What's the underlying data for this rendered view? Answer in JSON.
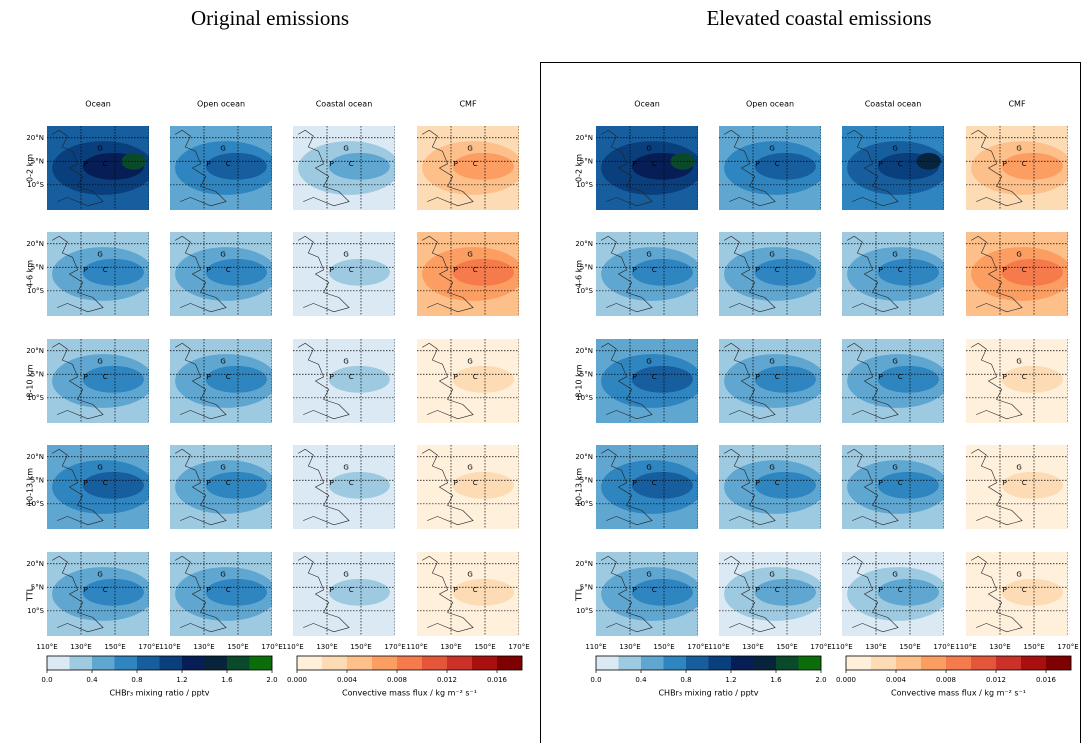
{
  "panels": [
    {
      "title": "Original emissions"
    },
    {
      "title": "Elevated coastal emissions"
    }
  ],
  "columns": [
    "Ocean",
    "Open ocean",
    "Coastal ocean",
    "CMF"
  ],
  "rows": [
    "0-2 km",
    "4-6 km",
    "8-10 km",
    "10-13 km",
    "TTL"
  ],
  "lat_labels": [
    "20°N",
    "5°N",
    "10°S"
  ],
  "lon_labels": [
    "110°E",
    "130°E",
    "150°E",
    "170°E"
  ],
  "region_labels": [
    "G",
    "P",
    "C"
  ],
  "colorbars": [
    {
      "label": "CHBr₃ mixing ratio / pptv",
      "lim": [
        0,
        2
      ],
      "ticks": [
        {
          "value": 0,
          "label": "0.0"
        },
        0.4,
        0.8,
        1.2,
        1.6,
        {
          "value": 2,
          "label": "2.0"
        }
      ],
      "colors": [
        "#dbe9f4",
        "#9ecae1",
        "#5fa6d1",
        "#2f85bf",
        "#175e9f",
        "#0a3f7e",
        "#061e55",
        "#07243c",
        "#0a4a2a",
        "#0b6e0b"
      ]
    },
    {
      "label": "Convective mass flux / kg m⁻² s⁻¹",
      "lim": [
        0,
        0.018
      ],
      "ticks": [
        {
          "value": 0,
          "label": "0.000"
        },
        {
          "value": 0.004,
          "label": "0.004"
        },
        {
          "value": 0.008,
          "label": "0.008"
        },
        {
          "value": 0.012,
          "label": "0.012"
        },
        {
          "value": 0.016,
          "label": "0.016"
        }
      ],
      "colors": [
        "#fff0dc",
        "#fddbb4",
        "#fdc08a",
        "#fc9d62",
        "#f57a4c",
        "#e4553a",
        "#cb3128",
        "#a8100f",
        "#7f0000"
      ]
    }
  ]
}
